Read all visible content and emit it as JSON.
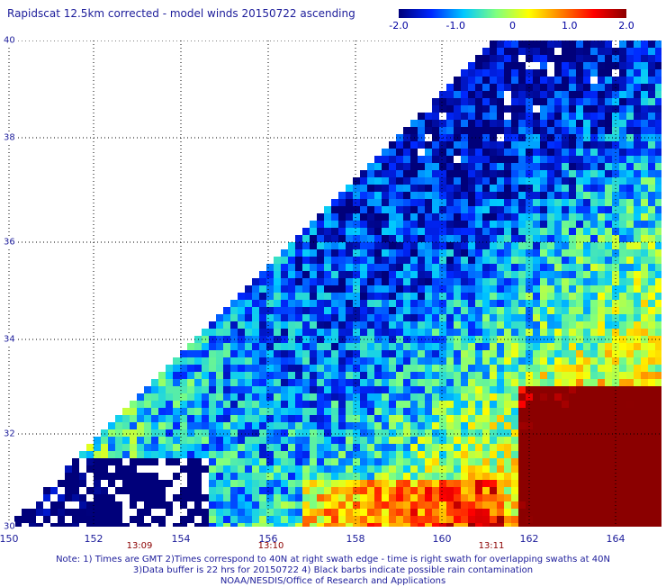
{
  "title": "Rapidscat 12.5km corrected - model winds 20150722 ascending",
  "colorbar": {
    "labels": [
      "-2.0",
      "-1.0",
      "0",
      "1.0",
      "2.0"
    ],
    "stops": [
      "#00007a",
      "#0028ff",
      "#00c8ff",
      "#7fff7f",
      "#ffff00",
      "#ff7f00",
      "#ff0000",
      "#8b0000"
    ]
  },
  "axes": {
    "x_ticks": [
      "150",
      "152",
      "154",
      "156",
      "158",
      "160",
      "162",
      "164"
    ],
    "y_ticks": [
      "40",
      "38",
      "36",
      "34",
      "32",
      "30"
    ],
    "lon_range": [
      150,
      165
    ],
    "lat_range": [
      30,
      40
    ]
  },
  "times": [
    {
      "label": "13:09",
      "lon": 153
    },
    {
      "label": "13:10",
      "lon": 156
    },
    {
      "label": "13:11",
      "lon": 161
    }
  ],
  "notes": [
    "Note: 1) Times are GMT 2)Times correspond to 40N at right swath edge - time is right swath for overlapping swaths at 40N",
    "3)Data buffer is 22 hrs for 20150722 4) Black barbs indicate possible rain contamination",
    "NOAA/NESDIS/Office of Research and Applications"
  ],
  "colors": {
    "grid": "#000000",
    "text": "#1c1c9a",
    "time_text": "#8b0000"
  }
}
